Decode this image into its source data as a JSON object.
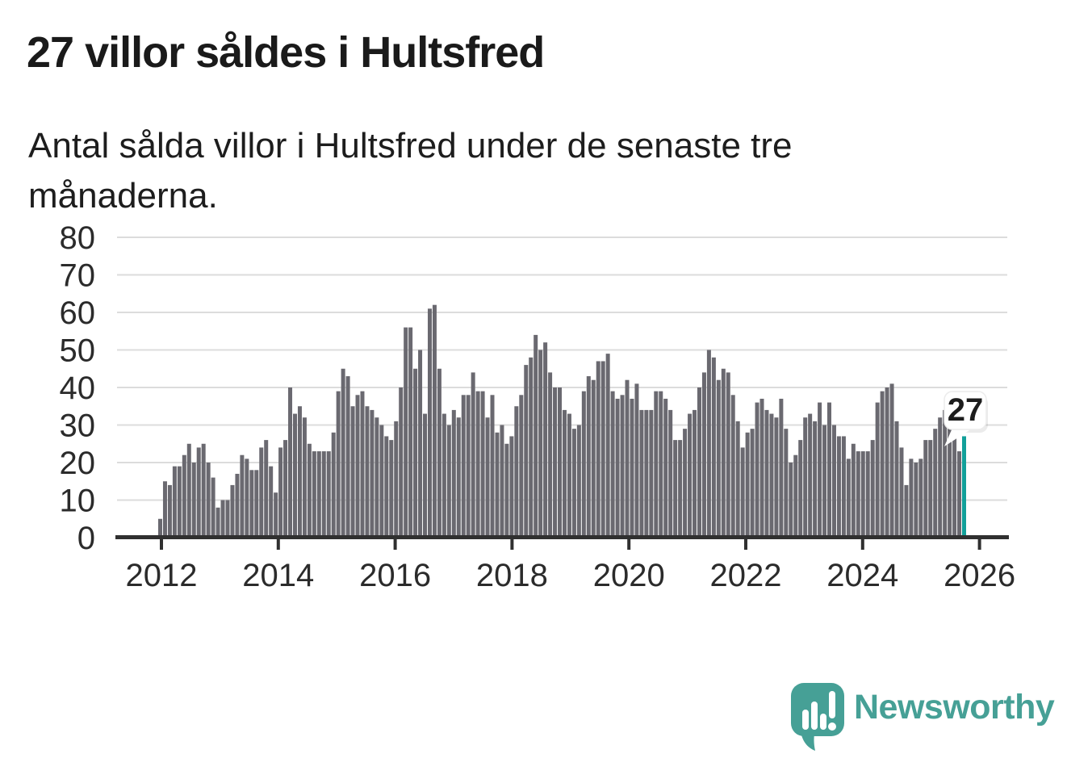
{
  "header": {
    "title": "27 villor såldes i Hultsfred",
    "subtitle": "Antal sålda villor i Hultsfred under de senaste tre månaderna."
  },
  "chart_data": {
    "type": "bar",
    "title": "27 villor såldes i Hultsfred",
    "subtitle": "Antal sålda villor i Hultsfred under de senaste tre månaderna.",
    "frequency": "monthly",
    "x_first_bar": "2012",
    "x_tick_labels": [
      "2012",
      "2014",
      "2016",
      "2018",
      "2020",
      "2022",
      "2024",
      "2026"
    ],
    "y_tick_labels": [
      "0",
      "10",
      "20",
      "30",
      "40",
      "50",
      "60",
      "70",
      "80"
    ],
    "ylim": [
      0,
      80
    ],
    "grid": "horizontal",
    "legend": "none",
    "bar_color": "#6a6970",
    "highlight_color": "#12a09a",
    "axis_color": "#303030",
    "gridline_color": "#dcdcdc",
    "label_color": "#2b2b2b",
    "annotation": {
      "label": "27",
      "value": 27,
      "applies_to": "last-bar"
    },
    "values": [
      5,
      15,
      14,
      19,
      19,
      22,
      25,
      20,
      24,
      25,
      20,
      16,
      8,
      10,
      10,
      14,
      17,
      22,
      21,
      18,
      18,
      24,
      26,
      19,
      12,
      24,
      26,
      40,
      33,
      35,
      32,
      25,
      23,
      23,
      23,
      23,
      28,
      39,
      45,
      43,
      35,
      38,
      39,
      35,
      34,
      32,
      30,
      27,
      26,
      31,
      40,
      56,
      56,
      45,
      50,
      33,
      61,
      62,
      45,
      33,
      30,
      34,
      32,
      38,
      38,
      44,
      39,
      39,
      32,
      38,
      28,
      30,
      25,
      27,
      35,
      38,
      46,
      48,
      54,
      50,
      52,
      44,
      40,
      40,
      34,
      33,
      29,
      30,
      39,
      43,
      42,
      47,
      47,
      49,
      39,
      37,
      38,
      42,
      37,
      41,
      34,
      34,
      34,
      39,
      39,
      37,
      34,
      26,
      26,
      29,
      33,
      34,
      40,
      44,
      50,
      48,
      42,
      45,
      44,
      38,
      31,
      24,
      28,
      29,
      36,
      37,
      34,
      33,
      32,
      37,
      29,
      20,
      22,
      26,
      32,
      33,
      31,
      36,
      30,
      36,
      30,
      27,
      27,
      21,
      25,
      23,
      23,
      23,
      26,
      36,
      39,
      40,
      41,
      31,
      24,
      14,
      21,
      20,
      21,
      26,
      26,
      29,
      32,
      34,
      33,
      30,
      23,
      27
    ]
  },
  "footer": {
    "brand": "Newsworthy",
    "brand_color": "#46a096",
    "logo_icon": "newsworthy-speech-bubble-bar-chart-icon"
  }
}
